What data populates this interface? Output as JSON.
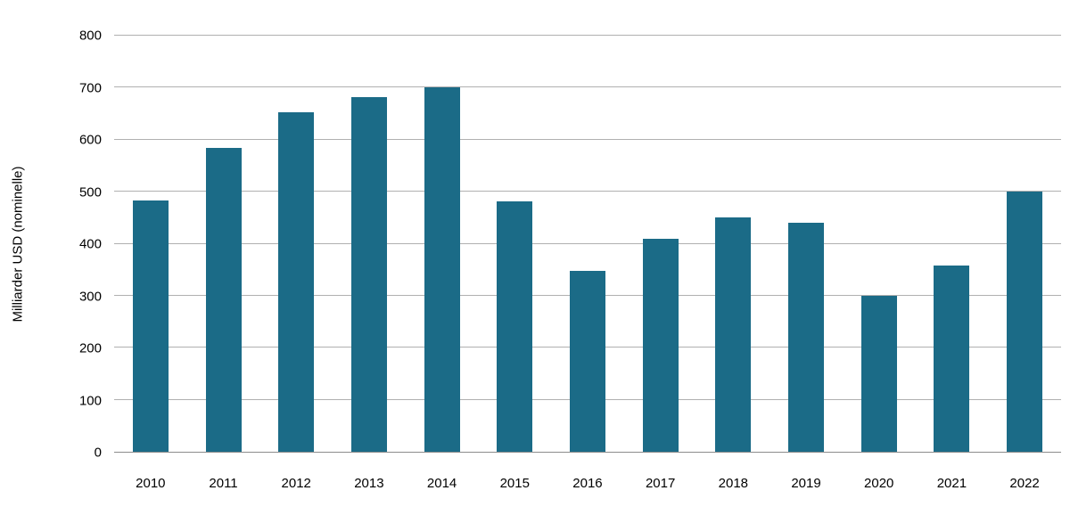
{
  "chart_data": {
    "type": "bar",
    "categories": [
      "2010",
      "2011",
      "2012",
      "2013",
      "2014",
      "2015",
      "2016",
      "2017",
      "2018",
      "2019",
      "2020",
      "2021",
      "2022"
    ],
    "values": [
      483,
      585,
      652,
      682,
      700,
      481,
      348,
      410,
      450,
      441,
      300,
      358,
      500
    ],
    "title": "",
    "xlabel": "",
    "ylabel": "Milliarder USD (nominelle)",
    "ylim": [
      0,
      800
    ],
    "yticks": [
      0,
      100,
      200,
      300,
      400,
      500,
      600,
      700,
      800
    ],
    "grid": true,
    "legend_position": "none",
    "bar_color": "#1b6b87",
    "gridline_color": "#b0b0b0",
    "baseline_color": "#8c8c8c"
  }
}
